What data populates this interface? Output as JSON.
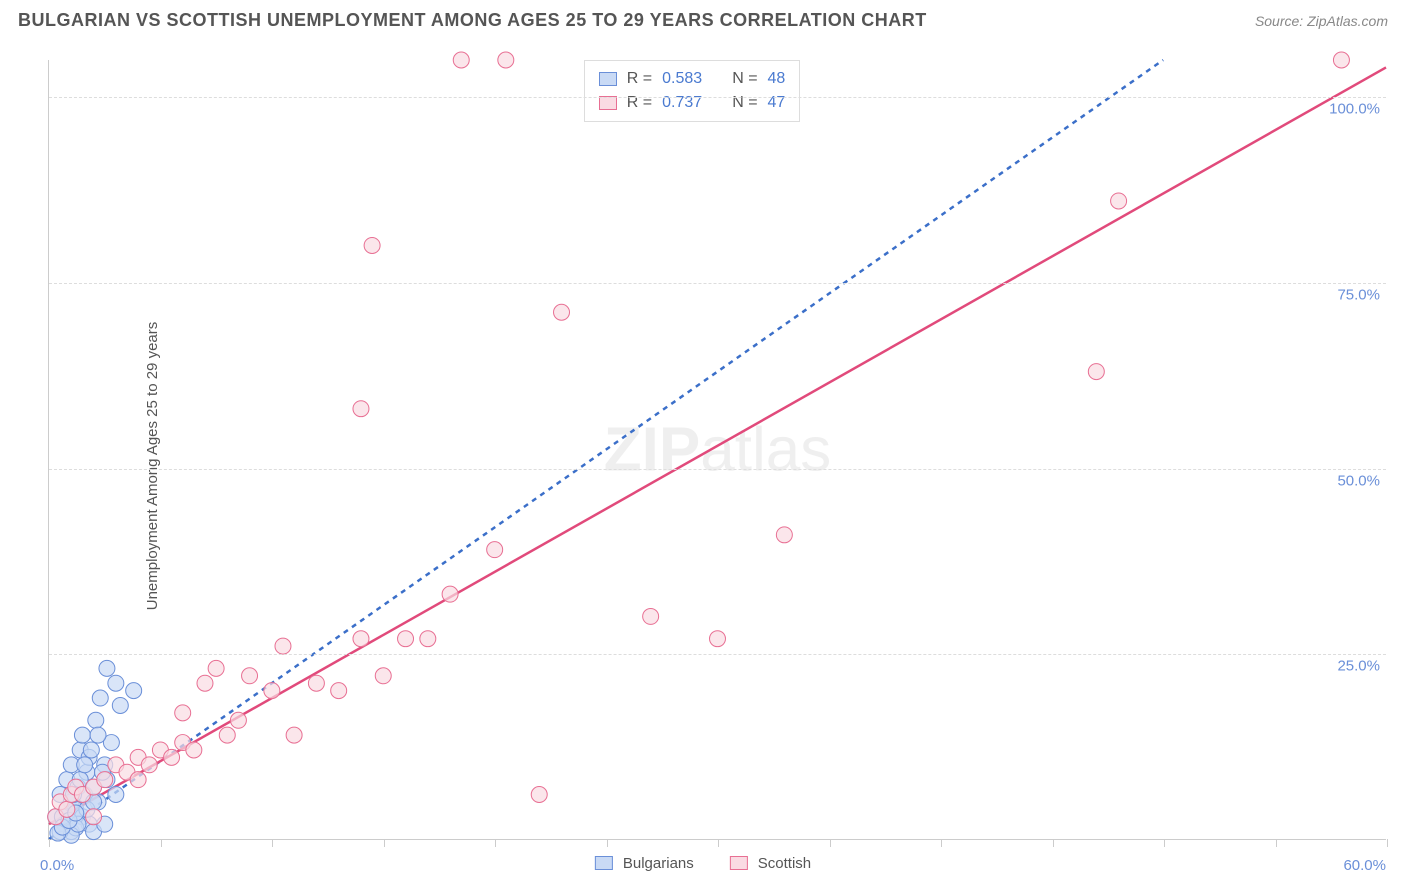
{
  "header": {
    "title": "BULGARIAN VS SCOTTISH UNEMPLOYMENT AMONG AGES 25 TO 29 YEARS CORRELATION CHART",
    "source": "Source: ZipAtlas.com"
  },
  "chart": {
    "type": "scatter",
    "ylabel": "Unemployment Among Ages 25 to 29 years",
    "watermark_prefix": "ZIP",
    "watermark_suffix": "atlas",
    "background_color": "#ffffff",
    "grid_color": "#dddddd",
    "axis_color": "#cccccc",
    "label_color": "#555555",
    "tick_label_color": "#6a8fd8",
    "xlim": [
      0,
      60
    ],
    "ylim": [
      0,
      105
    ],
    "xtick_positions": [
      0,
      5,
      10,
      15,
      20,
      25,
      30,
      35,
      40,
      45,
      50,
      55,
      60
    ],
    "ytick_positions": [
      25,
      50,
      75,
      100
    ],
    "ytick_labels": [
      "25.0%",
      "50.0%",
      "75.0%",
      "100.0%"
    ],
    "x_min_label": "0.0%",
    "x_max_label": "60.0%",
    "series": [
      {
        "key": "bulgarians",
        "label": "Bulgarians",
        "fill": "#c9daf5",
        "stroke": "#6a8fd8",
        "line_color": "#3b6fc9",
        "line_dash": "5,5",
        "r_label": "R =",
        "r_value": "0.583",
        "n_label": "N =",
        "n_value": "48",
        "trend": {
          "x1": 0,
          "y1": 0,
          "x2": 50,
          "y2": 105
        },
        "points": [
          [
            0.3,
            3
          ],
          [
            0.5,
            6
          ],
          [
            0.7,
            2
          ],
          [
            0.8,
            8
          ],
          [
            1.0,
            5
          ],
          [
            1.0,
            10
          ],
          [
            1.2,
            4
          ],
          [
            1.3,
            7
          ],
          [
            1.4,
            12
          ],
          [
            1.5,
            3
          ],
          [
            1.5,
            14
          ],
          [
            1.6,
            6
          ],
          [
            1.7,
            9
          ],
          [
            1.8,
            11
          ],
          [
            1.8,
            2
          ],
          [
            2.0,
            7
          ],
          [
            2.1,
            16
          ],
          [
            2.2,
            5
          ],
          [
            2.3,
            19
          ],
          [
            2.5,
            10
          ],
          [
            2.6,
            8
          ],
          [
            2.8,
            13
          ],
          [
            3.0,
            21
          ],
          [
            3.0,
            6
          ],
          [
            1.0,
            1
          ],
          [
            1.2,
            1.5
          ],
          [
            0.5,
            1
          ],
          [
            0.6,
            3
          ],
          [
            0.8,
            4
          ],
          [
            1.1,
            6
          ],
          [
            1.4,
            8
          ],
          [
            1.6,
            10
          ],
          [
            1.9,
            12
          ],
          [
            2.2,
            14
          ],
          [
            2.6,
            23
          ],
          [
            3.2,
            18
          ],
          [
            3.8,
            20
          ],
          [
            1.0,
            0.5
          ],
          [
            1.3,
            2
          ],
          [
            1.7,
            4
          ],
          [
            2.0,
            5
          ],
          [
            2.4,
            9
          ],
          [
            0.4,
            0.8
          ],
          [
            0.6,
            1.6
          ],
          [
            0.9,
            2.5
          ],
          [
            1.2,
            3.5
          ],
          [
            2.0,
            1
          ],
          [
            2.5,
            2
          ]
        ]
      },
      {
        "key": "scottish",
        "label": "Scottish",
        "fill": "#fadbe3",
        "stroke": "#e86f93",
        "line_color": "#e14a7b",
        "line_dash": "",
        "r_label": "R =",
        "r_value": "0.737",
        "n_label": "N =",
        "n_value": "47",
        "trend": {
          "x1": 0,
          "y1": 2,
          "x2": 60,
          "y2": 104
        },
        "points": [
          [
            0.3,
            3
          ],
          [
            0.5,
            5
          ],
          [
            0.8,
            4
          ],
          [
            1.0,
            6
          ],
          [
            1.2,
            7
          ],
          [
            1.5,
            6
          ],
          [
            2.0,
            7
          ],
          [
            2.5,
            8
          ],
          [
            3.0,
            10
          ],
          [
            3.5,
            9
          ],
          [
            4.0,
            11
          ],
          [
            4.5,
            10
          ],
          [
            5.0,
            12
          ],
          [
            5.5,
            11
          ],
          [
            6.0,
            13
          ],
          [
            6.5,
            12
          ],
          [
            8.0,
            14
          ],
          [
            7.0,
            21
          ],
          [
            8.5,
            16
          ],
          [
            9.0,
            22
          ],
          [
            10.0,
            20
          ],
          [
            10.5,
            26
          ],
          [
            12.0,
            21
          ],
          [
            13.0,
            20
          ],
          [
            14.0,
            27
          ],
          [
            15.0,
            22
          ],
          [
            16.0,
            27
          ],
          [
            17.0,
            27
          ],
          [
            18.0,
            33
          ],
          [
            20.0,
            39
          ],
          [
            23.0,
            71
          ],
          [
            27.0,
            30
          ],
          [
            30.0,
            27
          ],
          [
            33.0,
            41
          ],
          [
            14.0,
            58
          ],
          [
            14.5,
            80
          ],
          [
            18.5,
            105
          ],
          [
            20.5,
            105
          ],
          [
            22.0,
            6
          ],
          [
            47.0,
            63
          ],
          [
            48.0,
            86
          ],
          [
            58.0,
            105
          ],
          [
            7.5,
            23
          ],
          [
            11.0,
            14
          ],
          [
            6.0,
            17
          ],
          [
            4.0,
            8
          ],
          [
            2.0,
            3
          ]
        ]
      }
    ]
  }
}
